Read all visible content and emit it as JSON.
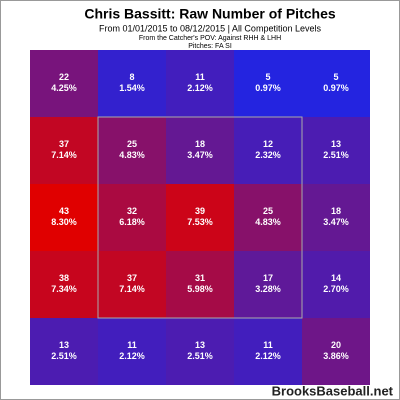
{
  "chart_data": {
    "type": "heatmap",
    "title": "Chris Bassitt: Raw Number of Pitches",
    "subtitle": "From 01/01/2015 to 08/12/2015 | All Competition Levels",
    "pov": "From the Catcher's POV:  Against RHH & LHH",
    "pitches": "Pitches:  FA  SI",
    "watermark": "BrooksBaseball.net",
    "low_color": "#2424e0",
    "high_color": "#e00000",
    "rows": [
      {
        "counts": [
          22,
          8,
          11,
          5,
          5
        ],
        "percents": [
          4.25,
          1.54,
          2.12,
          0.97,
          0.97
        ],
        "percent_labels": [
          "4.25%",
          "1.54%",
          "2.12%",
          "0.97%",
          "0.97%"
        ]
      },
      {
        "counts": [
          37,
          25,
          18,
          12,
          13
        ],
        "percents": [
          7.14,
          4.83,
          3.47,
          2.32,
          2.51
        ],
        "percent_labels": [
          "7.14%",
          "4.83%",
          "3.47%",
          "2.32%",
          "2.51%"
        ]
      },
      {
        "counts": [
          43,
          32,
          39,
          25,
          18
        ],
        "percents": [
          8.3,
          6.18,
          7.53,
          4.83,
          3.47
        ],
        "percent_labels": [
          "8.30%",
          "6.18%",
          "7.53%",
          "4.83%",
          "3.47%"
        ]
      },
      {
        "counts": [
          38,
          37,
          31,
          17,
          14
        ],
        "percents": [
          7.34,
          7.14,
          5.98,
          3.28,
          2.7
        ],
        "percent_labels": [
          "7.34%",
          "7.14%",
          "5.98%",
          "3.28%",
          "2.70%"
        ]
      },
      {
        "counts": [
          13,
          11,
          13,
          11,
          20
        ],
        "percents": [
          2.51,
          2.12,
          2.51,
          2.12,
          3.86
        ],
        "percent_labels": [
          "2.51%",
          "2.12%",
          "2.51%",
          "2.12%",
          "3.86%"
        ]
      }
    ]
  }
}
